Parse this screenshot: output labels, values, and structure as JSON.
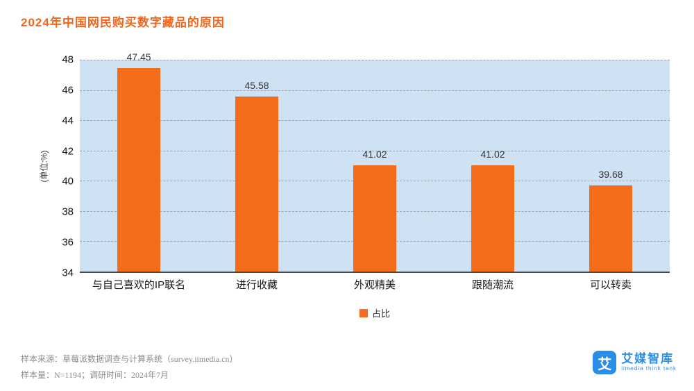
{
  "title": "2024年中国网民购买数字藏品的原因",
  "chart_data": {
    "type": "bar",
    "categories": [
      "与自己喜欢的IP联名",
      "进行收藏",
      "外观精美",
      "跟随潮流",
      "可以转卖"
    ],
    "values": [
      47.45,
      45.58,
      41.02,
      41.02,
      39.68
    ],
    "value_labels": [
      "47.45",
      "45.58",
      "41.02",
      "41.02",
      "39.68"
    ],
    "title": "2024年中国网民购买数字藏品的原因",
    "xlabel": "",
    "ylabel": "(单位:%)",
    "ylim": [
      34,
      48
    ],
    "yticks": [
      34,
      36,
      38,
      40,
      42,
      44,
      46,
      48
    ],
    "grid": true,
    "legend_position": "bottom",
    "legend": [
      "占比"
    ],
    "bar_color": "#f26c19",
    "plot_background": "#cfe2f4"
  },
  "footer": {
    "line1": "样本来源：草莓派数据调查与计算系统（survey.iimedia.cn）",
    "line2": "样本量：N=1194；调研时间：2024年7月"
  },
  "logo": {
    "mark": "艾",
    "name": "艾媒智库",
    "subtitle": "iimedia think tank"
  }
}
